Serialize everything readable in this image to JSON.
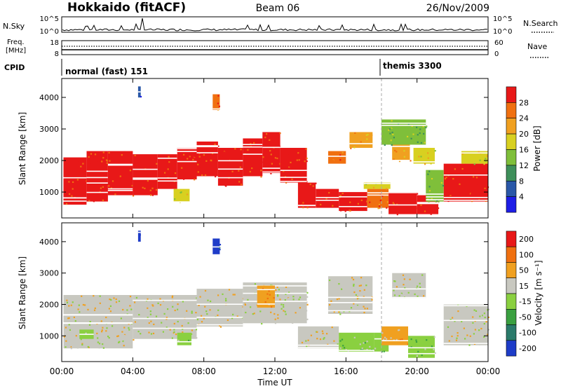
{
  "header": {
    "station": "Hokkaido (fitACF)",
    "beam": "Beam 06",
    "date": "26/Nov/2009"
  },
  "top_panels": {
    "nsky": {
      "label": "N.Sky",
      "right_label": "N.Search",
      "ticks": [
        "10^5",
        "10^0"
      ],
      "right_ticks": [
        "10^5",
        "10^0"
      ]
    },
    "freq": {
      "label_line1": "Freq.",
      "label_line2": "[MHz]",
      "ticks": [
        "18",
        "8"
      ],
      "right_ticks": [
        "60",
        "0"
      ],
      "right_label": "Nave"
    },
    "cpid": {
      "label": "CPID",
      "modes": [
        {
          "name": "normal (fast) 151",
          "start_hour": 0
        },
        {
          "name": "themis 3300",
          "start_hour": 18.0
        }
      ]
    }
  },
  "chart_data": [
    {
      "type": "heatmap",
      "title": "",
      "xlabel": "",
      "ylabel": "Slant Range [km]",
      "xlim": [
        0,
        24
      ],
      "ylim": [
        180,
        4600
      ],
      "y_ticks": [
        "1000",
        "2000",
        "3000",
        "4000"
      ],
      "colorbar": {
        "label": "Power [dB]",
        "tick_labels": [
          "4",
          "8",
          "12",
          "16",
          "20",
          "24",
          "28"
        ],
        "colors": [
          "#1e1ee6",
          "#2a58a8",
          "#3e8f5a",
          "#7fbf3a",
          "#d8d020",
          "#f0a020",
          "#f07010",
          "#e81818"
        ]
      },
      "regions": [
        {
          "h0": 0.1,
          "h1": 1.4,
          "r0": 600,
          "r1": 2100,
          "level": 7
        },
        {
          "h0": 1.4,
          "h1": 2.6,
          "r0": 700,
          "r1": 2300,
          "level": 7
        },
        {
          "h0": 2.6,
          "h1": 4.0,
          "r0": 900,
          "r1": 2300,
          "level": 7
        },
        {
          "h0": 4.0,
          "h1": 5.4,
          "r0": 900,
          "r1": 2200,
          "level": 7
        },
        {
          "h0": 5.4,
          "h1": 6.5,
          "r0": 1100,
          "r1": 2200,
          "level": 7
        },
        {
          "h0": 6.5,
          "h1": 7.6,
          "r0": 1400,
          "r1": 2400,
          "level": 7
        },
        {
          "h0": 7.6,
          "h1": 8.8,
          "r0": 1500,
          "r1": 2600,
          "level": 7
        },
        {
          "h0": 8.8,
          "h1": 10.2,
          "r0": 1200,
          "r1": 2400,
          "level": 7
        },
        {
          "h0": 10.2,
          "h1": 11.3,
          "r0": 1500,
          "r1": 2700,
          "level": 7
        },
        {
          "h0": 11.3,
          "h1": 12.3,
          "r0": 1600,
          "r1": 2900,
          "level": 7
        },
        {
          "h0": 12.3,
          "h1": 13.8,
          "r0": 1300,
          "r1": 2400,
          "level": 7
        },
        {
          "h0": 13.3,
          "h1": 14.3,
          "r0": 500,
          "r1": 1300,
          "level": 7
        },
        {
          "h0": 14.3,
          "h1": 15.6,
          "r0": 500,
          "r1": 1100,
          "level": 7
        },
        {
          "h0": 15.6,
          "h1": 17.2,
          "r0": 400,
          "r1": 1000,
          "level": 7
        },
        {
          "h0": 17.2,
          "h1": 18.4,
          "r0": 500,
          "r1": 1100,
          "level": 6
        },
        {
          "h0": 18.4,
          "h1": 20.0,
          "r0": 300,
          "r1": 1000,
          "level": 7
        },
        {
          "h0": 20.0,
          "h1": 21.2,
          "r0": 300,
          "r1": 900,
          "level": 7
        },
        {
          "h0": 21.5,
          "h1": 24.0,
          "r0": 700,
          "r1": 1900,
          "level": 7
        },
        {
          "h0": 22.5,
          "h1": 24.0,
          "r0": 1900,
          "r1": 2300,
          "level": 4
        },
        {
          "h0": 15.0,
          "h1": 16.0,
          "r0": 1900,
          "r1": 2300,
          "level": 6
        },
        {
          "h0": 16.2,
          "h1": 17.5,
          "r0": 2400,
          "r1": 2900,
          "level": 5
        },
        {
          "h0": 18.6,
          "h1": 19.6,
          "r0": 2000,
          "r1": 2700,
          "level": 5
        },
        {
          "h0": 19.8,
          "h1": 21.0,
          "r0": 1900,
          "r1": 2400,
          "level": 4
        },
        {
          "h0": 20.5,
          "h1": 21.5,
          "r0": 700,
          "r1": 1700,
          "level": 3
        },
        {
          "h0": 17.0,
          "h1": 18.5,
          "r0": 1100,
          "r1": 1300,
          "level": 4
        },
        {
          "h0": 8.5,
          "h1": 8.9,
          "r0": 3600,
          "r1": 4100,
          "level": 6
        },
        {
          "h0": 4.3,
          "h1": 4.45,
          "r0": 4000,
          "r1": 4350,
          "level": 1
        },
        {
          "h0": 18.0,
          "h1": 20.5,
          "r0": 2500,
          "r1": 3300,
          "level": 3
        },
        {
          "h0": 6.3,
          "h1": 7.2,
          "r0": 700,
          "r1": 1100,
          "level": 4
        }
      ]
    },
    {
      "type": "heatmap",
      "title": "",
      "xlabel": "Time UT",
      "ylabel": "Slant Range [km]",
      "xlim": [
        0,
        24
      ],
      "ylim": [
        180,
        4600
      ],
      "y_ticks": [
        "1000",
        "2000",
        "3000",
        "4000"
      ],
      "x_ticks": [
        "00:00",
        "04:00",
        "08:00",
        "12:00",
        "16:00",
        "20:00",
        "00:00"
      ],
      "colorbar": {
        "label": "Velocity [m s⁻¹]",
        "tick_labels": [
          "200",
          "100",
          "50",
          "15",
          "-15",
          "-50",
          "-100",
          "-200"
        ],
        "colors": [
          "#1e3cc8",
          "#2a7a6a",
          "#3aa040",
          "#8ad040",
          "#c8c8c0",
          "#f0a020",
          "#f07010",
          "#e81818"
        ]
      },
      "regions": [
        {
          "h0": 0.1,
          "h1": 4.0,
          "r0": 600,
          "r1": 2300,
          "level": 4
        },
        {
          "h0": 4.0,
          "h1": 7.6,
          "r0": 900,
          "r1": 2300,
          "level": 4
        },
        {
          "h0": 7.6,
          "h1": 10.2,
          "r0": 1300,
          "r1": 2500,
          "level": 4
        },
        {
          "h0": 10.2,
          "h1": 13.8,
          "r0": 1400,
          "r1": 2700,
          "level": 4
        },
        {
          "h0": 11.0,
          "h1": 12.0,
          "r0": 1900,
          "r1": 2600,
          "level": 5
        },
        {
          "h0": 13.3,
          "h1": 15.6,
          "r0": 600,
          "r1": 1300,
          "level": 4
        },
        {
          "h0": 15.6,
          "h1": 17.6,
          "r0": 500,
          "r1": 1100,
          "level": 3
        },
        {
          "h0": 17.6,
          "h1": 18.4,
          "r0": 500,
          "r1": 1100,
          "level": 3
        },
        {
          "h0": 18.0,
          "h1": 19.5,
          "r0": 700,
          "r1": 1300,
          "level": 5
        },
        {
          "h0": 19.5,
          "h1": 21.0,
          "r0": 300,
          "r1": 1000,
          "level": 3
        },
        {
          "h0": 21.5,
          "h1": 24.0,
          "r0": 700,
          "r1": 2000,
          "level": 4
        },
        {
          "h0": 15.0,
          "h1": 17.5,
          "r0": 1700,
          "r1": 2900,
          "level": 4
        },
        {
          "h0": 18.6,
          "h1": 20.5,
          "r0": 2200,
          "r1": 3000,
          "level": 4
        },
        {
          "h0": 8.5,
          "h1": 8.9,
          "r0": 3600,
          "r1": 4100,
          "level": 0
        },
        {
          "h0": 4.3,
          "h1": 4.45,
          "r0": 4000,
          "r1": 4350,
          "level": 0
        },
        {
          "h0": 6.5,
          "h1": 7.3,
          "r0": 700,
          "r1": 1100,
          "level": 3
        },
        {
          "h0": 1.0,
          "h1": 1.8,
          "r0": 900,
          "r1": 1200,
          "level": 3
        }
      ]
    }
  ]
}
